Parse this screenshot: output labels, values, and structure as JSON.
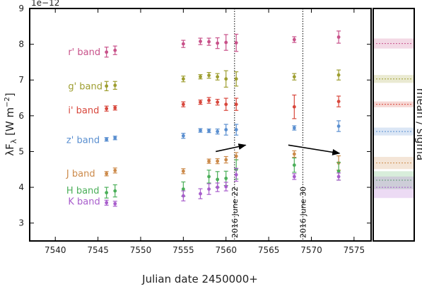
{
  "chart_data": {
    "type": "scatter",
    "xlabel": "Julian date 2450000+",
    "ylabel": "λF_λ [W m^-2]",
    "y_multiplier": "1e−12",
    "xlim": [
      7537,
      7577
    ],
    "ylim": [
      2.5,
      9
    ],
    "xticks": [
      "7540",
      "7545",
      "7550",
      "7555",
      "7560",
      "7565",
      "7570",
      "7575"
    ],
    "yticks": [
      "3",
      "4",
      "5",
      "6",
      "7",
      "8",
      "9"
    ],
    "side_panel_label": "mean / sigma",
    "vlines": [
      {
        "x": 7561,
        "label": "2016 June 22"
      },
      {
        "x": 7569,
        "label": "2016 June 30"
      }
    ],
    "arrows": [
      {
        "x0": 7558.8,
        "y0": 5.0,
        "x1": 7562.3,
        "y1": 5.18
      },
      {
        "x0": 7567.3,
        "y0": 5.18,
        "x1": 7573.3,
        "y1": 4.95
      }
    ],
    "series": [
      {
        "name": "r' band",
        "color": "#c8528a",
        "label_x": 7541.5,
        "label_y": 7.78,
        "mean": 8.02,
        "sigma": 0.14,
        "points": [
          [
            7546,
            7.78,
            0.14
          ],
          [
            7547,
            7.83,
            0.12
          ],
          [
            7555,
            8.01,
            0.1
          ],
          [
            7557,
            8.08,
            0.09
          ],
          [
            7558,
            8.07,
            0.1
          ],
          [
            7559,
            8.03,
            0.15
          ],
          [
            7560,
            8.05,
            0.22
          ],
          [
            7561.2,
            8.04,
            0.24
          ],
          [
            7568,
            8.13,
            0.08
          ],
          [
            7573.2,
            8.2,
            0.17
          ]
        ]
      },
      {
        "name": "g' band",
        "color": "#9e9e30",
        "label_x": 7541.5,
        "label_y": 6.82,
        "mean": 7.03,
        "sigma": 0.11,
        "points": [
          [
            7546,
            6.83,
            0.13
          ],
          [
            7547,
            6.85,
            0.11
          ],
          [
            7555,
            7.03,
            0.08
          ],
          [
            7557,
            7.09,
            0.06
          ],
          [
            7558,
            7.13,
            0.08
          ],
          [
            7559,
            7.09,
            0.09
          ],
          [
            7560,
            7.03,
            0.23
          ],
          [
            7561.2,
            7.03,
            0.2
          ],
          [
            7568,
            7.09,
            0.09
          ],
          [
            7573.2,
            7.14,
            0.14
          ]
        ]
      },
      {
        "name": "i' band",
        "color": "#d8473c",
        "label_x": 7541.5,
        "label_y": 6.15,
        "mean": 6.32,
        "sigma": 0.08,
        "points": [
          [
            7546,
            6.2,
            0.07
          ],
          [
            7547,
            6.22,
            0.06
          ],
          [
            7555,
            6.32,
            0.07
          ],
          [
            7557,
            6.38,
            0.06
          ],
          [
            7558,
            6.43,
            0.08
          ],
          [
            7559,
            6.38,
            0.08
          ],
          [
            7560,
            6.32,
            0.17
          ],
          [
            7561.2,
            6.32,
            0.17
          ],
          [
            7568,
            6.25,
            0.33
          ],
          [
            7573.2,
            6.4,
            0.15
          ]
        ]
      },
      {
        "name": "z' band",
        "color": "#5a8fd0",
        "label_x": 7541.3,
        "label_y": 5.32,
        "mean": 5.56,
        "sigma": 0.11,
        "points": [
          [
            7546,
            5.34,
            0.05
          ],
          [
            7547,
            5.38,
            0.05
          ],
          [
            7555,
            5.44,
            0.07
          ],
          [
            7557,
            5.59,
            0.05
          ],
          [
            7558,
            5.58,
            0.05
          ],
          [
            7559,
            5.56,
            0.07
          ],
          [
            7560,
            5.61,
            0.15
          ],
          [
            7561.2,
            5.61,
            0.15
          ],
          [
            7568,
            5.66,
            0.06
          ],
          [
            7573.2,
            5.71,
            0.15
          ]
        ]
      },
      {
        "name": "J band",
        "color": "#cc8a4a",
        "label_x": 7541.3,
        "label_y": 4.38,
        "mean": 4.68,
        "sigma": 0.17,
        "points": [
          [
            7546,
            4.38,
            0.06
          ],
          [
            7547,
            4.47,
            0.07
          ],
          [
            7555,
            4.45,
            0.07
          ],
          [
            7558,
            4.73,
            0.06
          ],
          [
            7559,
            4.73,
            0.07
          ],
          [
            7560,
            4.77,
            0.09
          ],
          [
            7561.2,
            4.87,
            0.1
          ],
          [
            7568,
            4.93,
            0.09
          ],
          [
            7573.2,
            4.68,
            0.2
          ]
        ]
      },
      {
        "name": "H band",
        "color": "#4caf5a",
        "label_x": 7541.3,
        "label_y": 3.9,
        "mean": 4.2,
        "sigma": 0.25,
        "points": [
          [
            7546,
            3.85,
            0.15
          ],
          [
            7547,
            3.9,
            0.17
          ],
          [
            7555,
            3.95,
            0.2
          ],
          [
            7558,
            4.3,
            0.18
          ],
          [
            7559,
            4.22,
            0.22
          ],
          [
            7560,
            4.25,
            0.2
          ],
          [
            7561.2,
            4.5,
            0.27
          ],
          [
            7568,
            4.62,
            0.2
          ],
          [
            7573.2,
            4.45,
            0.25
          ]
        ]
      },
      {
        "name": "K band",
        "color": "#a85dcc",
        "label_x": 7541.5,
        "label_y": 3.6,
        "mean": 4.0,
        "sigma": 0.3,
        "points": [
          [
            7546,
            3.57,
            0.07
          ],
          [
            7547,
            3.54,
            0.07
          ],
          [
            7555,
            3.76,
            0.14
          ],
          [
            7557,
            3.82,
            0.14
          ],
          [
            7558,
            3.95,
            0.15
          ],
          [
            7559,
            4.0,
            0.12
          ],
          [
            7560,
            4.02,
            0.12
          ],
          [
            7561.2,
            4.35,
            0.18
          ],
          [
            7568,
            4.3,
            0.08
          ],
          [
            7573.2,
            4.3,
            0.1
          ]
        ]
      }
    ]
  }
}
